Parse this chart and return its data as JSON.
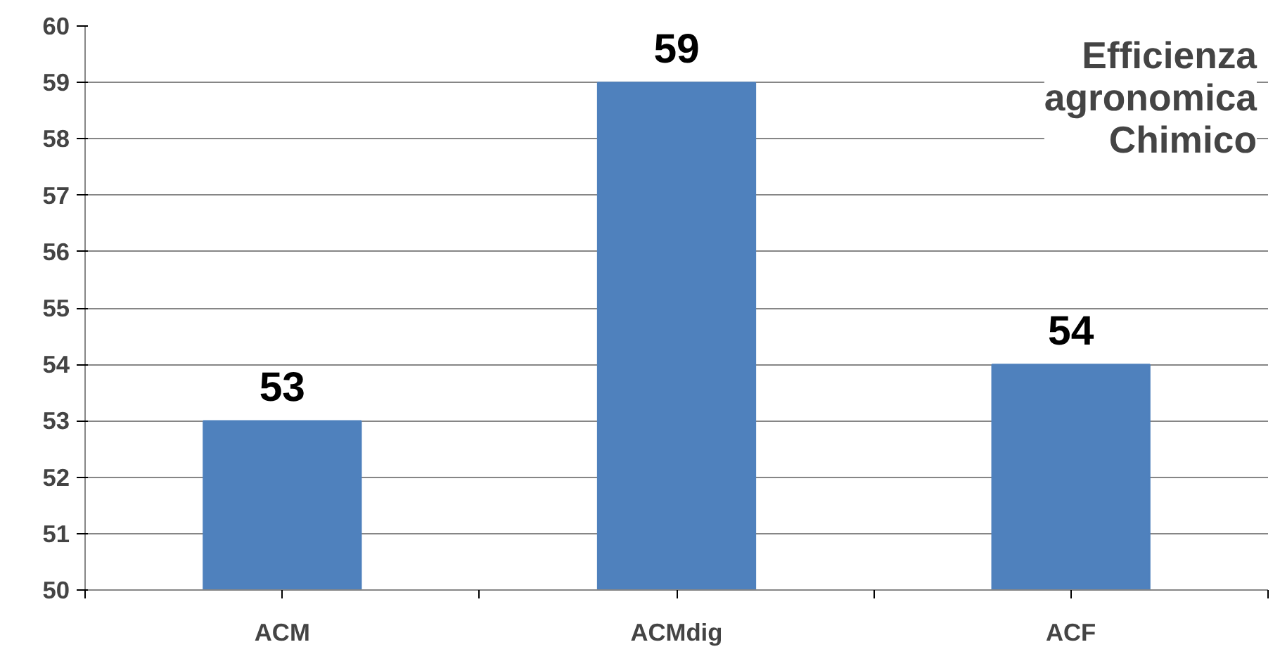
{
  "chart_data": {
    "type": "bar",
    "title": "Efficienza agronomica Chimico",
    "categories": [
      "ACM",
      "ACMdig",
      "ACF"
    ],
    "values": [
      53,
      59,
      54
    ],
    "color": "#4f81bd",
    "ylim": [
      50,
      60
    ],
    "yticks": [
      50,
      51,
      52,
      53,
      54,
      55,
      56,
      57,
      58,
      59,
      60
    ],
    "grid": "y",
    "data_labels": true
  }
}
